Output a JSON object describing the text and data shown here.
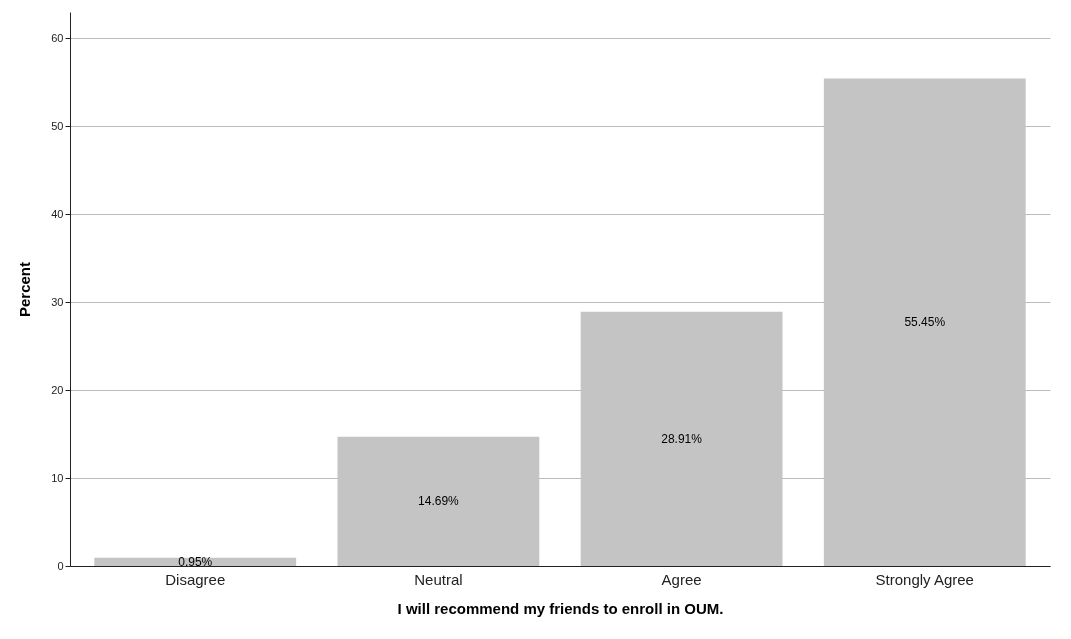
{
  "chart_data": {
    "type": "bar",
    "xlabel": "I will recommend my friends to enroll in OUM.",
    "ylabel": "Percent",
    "categories": [
      "Disagree",
      "Neutral",
      "Agree",
      "Strongly Agree"
    ],
    "values": [
      0.95,
      14.69,
      28.91,
      55.45
    ],
    "value_labels": [
      "0.95%",
      "14.69%",
      "28.91%",
      "55.45%"
    ],
    "color": "#c4c4c4",
    "ylim": [
      0,
      63
    ],
    "yticks": [
      0,
      10,
      20,
      30,
      40,
      50,
      60
    ],
    "grid": "y"
  }
}
